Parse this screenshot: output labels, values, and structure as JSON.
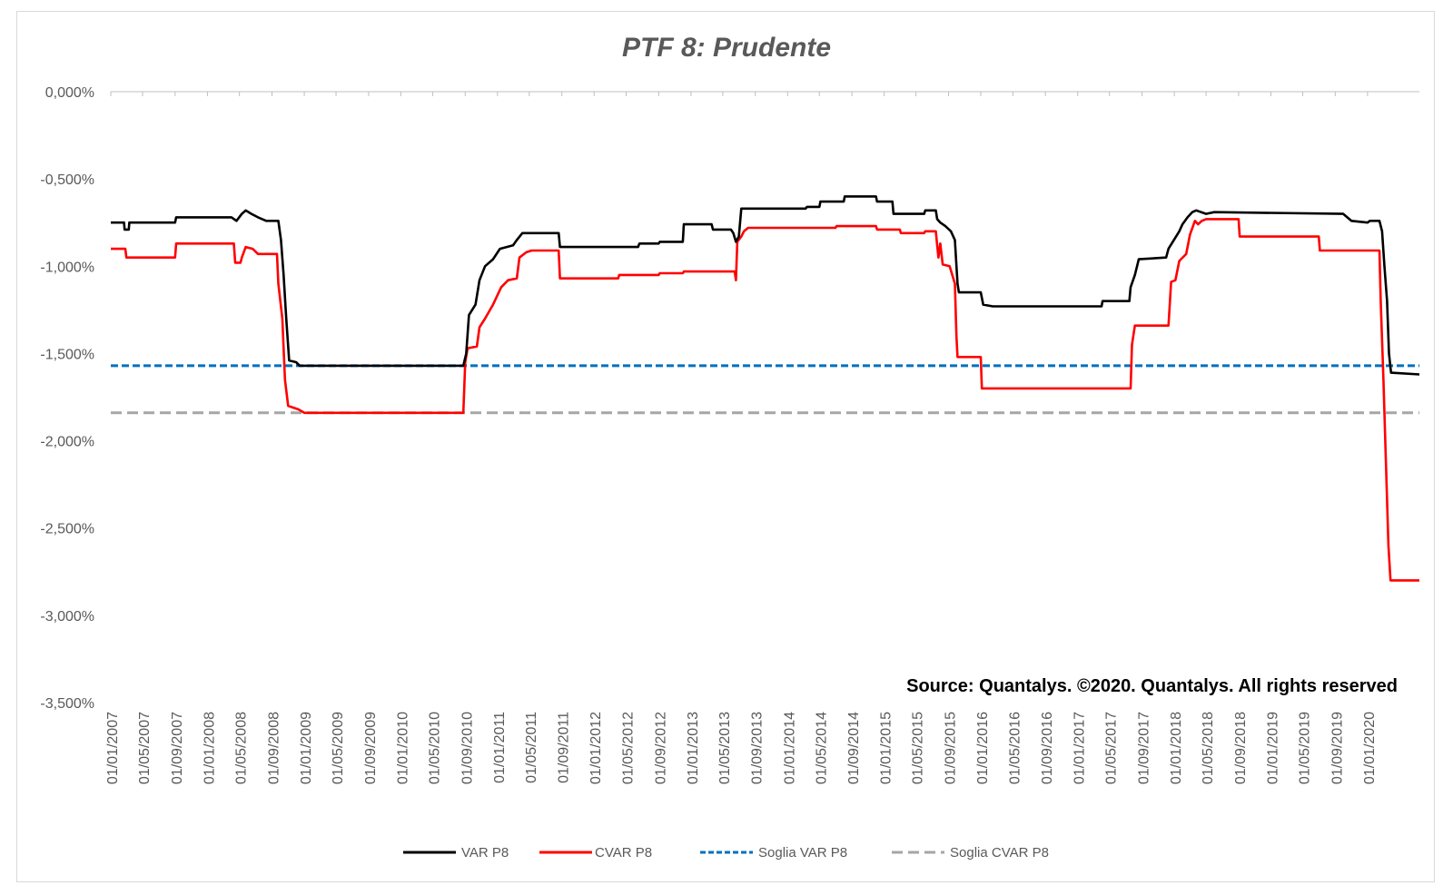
{
  "chart_data": {
    "type": "line",
    "title": "PTF 8: Prudente",
    "source_note": "Source: Quantalys. ©2020. Quantalys. All rights reserved",
    "ylim": [
      -3.5,
      0
    ],
    "y_ticks": [
      0,
      -0.5,
      -1,
      -1.5,
      -2,
      -2.5,
      -3,
      -3.5
    ],
    "y_tick_labels": [
      "0,000%",
      "-0,500%",
      "-1,000%",
      "-1,500%",
      "-2,000%",
      "-2,500%",
      "-3,000%",
      "-3,500%"
    ],
    "y_unit": "%",
    "x_range": [
      "2007-01-01",
      "2020-07-15"
    ],
    "x_tick_labels": [
      "01/01/2007",
      "01/05/2007",
      "01/09/2007",
      "01/01/2008",
      "01/05/2008",
      "01/09/2008",
      "01/01/2009",
      "01/05/2009",
      "01/09/2009",
      "01/01/2010",
      "01/05/2010",
      "01/09/2010",
      "01/01/2011",
      "01/05/2011",
      "01/09/2011",
      "01/01/2012",
      "01/05/2012",
      "01/09/2012",
      "01/01/2013",
      "01/05/2013",
      "01/09/2013",
      "01/01/2014",
      "01/05/2014",
      "01/09/2014",
      "01/01/2015",
      "01/05/2015",
      "01/09/2015",
      "01/01/2016",
      "01/05/2016",
      "01/09/2016",
      "01/01/2017",
      "01/05/2017",
      "01/09/2017",
      "01/01/2018",
      "01/05/2018",
      "01/09/2018",
      "01/01/2019",
      "01/05/2019",
      "01/09/2019",
      "01/01/2020"
    ],
    "x_tick_dates": [
      "2007-01-01",
      "2007-05-01",
      "2007-09-01",
      "2008-01-01",
      "2008-05-01",
      "2008-09-01",
      "2009-01-01",
      "2009-05-01",
      "2009-09-01",
      "2010-01-01",
      "2010-05-01",
      "2010-09-01",
      "2011-01-01",
      "2011-05-01",
      "2011-09-01",
      "2012-01-01",
      "2012-05-01",
      "2012-09-01",
      "2013-01-01",
      "2013-05-01",
      "2013-09-01",
      "2014-01-01",
      "2014-05-01",
      "2014-09-01",
      "2015-01-01",
      "2015-05-01",
      "2015-09-01",
      "2016-01-01",
      "2016-05-01",
      "2016-09-01",
      "2017-01-01",
      "2017-05-01",
      "2017-09-01",
      "2018-01-01",
      "2018-05-01",
      "2018-09-01",
      "2019-01-01",
      "2019-05-01",
      "2019-09-01",
      "2020-01-01"
    ],
    "legend_position": "bottom",
    "grid": false,
    "series": [
      {
        "name": "VAR  P8",
        "color": "#000000",
        "style": "solid",
        "points": [
          [
            "2007-01-01",
            -0.75
          ],
          [
            "2007-02-20",
            -0.75
          ],
          [
            "2007-02-22",
            -0.79
          ],
          [
            "2007-03-10",
            -0.79
          ],
          [
            "2007-03-12",
            -0.75
          ],
          [
            "2007-09-01",
            -0.75
          ],
          [
            "2007-09-05",
            -0.72
          ],
          [
            "2008-04-01",
            -0.72
          ],
          [
            "2008-04-20",
            -0.74
          ],
          [
            "2008-05-10",
            -0.7
          ],
          [
            "2008-05-25",
            -0.68
          ],
          [
            "2008-06-15",
            -0.7
          ],
          [
            "2008-07-10",
            -0.72
          ],
          [
            "2008-08-10",
            -0.74
          ],
          [
            "2008-09-25",
            -0.74
          ],
          [
            "2008-10-05",
            -0.85
          ],
          [
            "2008-10-15",
            -1.05
          ],
          [
            "2008-10-25",
            -1.3
          ],
          [
            "2008-11-05",
            -1.54
          ],
          [
            "2008-12-01",
            -1.55
          ],
          [
            "2008-12-15",
            -1.57
          ],
          [
            "2010-08-25",
            -1.57
          ],
          [
            "2010-09-05",
            -1.5
          ],
          [
            "2010-09-15",
            -1.28
          ],
          [
            "2010-10-10",
            -1.22
          ],
          [
            "2010-10-25",
            -1.08
          ],
          [
            "2010-11-15",
            -1.0
          ],
          [
            "2010-12-15",
            -0.96
          ],
          [
            "2011-01-10",
            -0.9
          ],
          [
            "2011-03-01",
            -0.88
          ],
          [
            "2011-03-15",
            -0.85
          ],
          [
            "2011-04-05",
            -0.81
          ],
          [
            "2011-08-20",
            -0.81
          ],
          [
            "2011-08-25",
            -0.89
          ],
          [
            "2012-06-15",
            -0.89
          ],
          [
            "2012-06-20",
            -0.87
          ],
          [
            "2012-09-01",
            -0.87
          ],
          [
            "2012-09-05",
            -0.86
          ],
          [
            "2012-12-01",
            -0.86
          ],
          [
            "2012-12-05",
            -0.76
          ],
          [
            "2013-03-20",
            -0.76
          ],
          [
            "2013-03-25",
            -0.79
          ],
          [
            "2013-06-01",
            -0.79
          ],
          [
            "2013-06-10",
            -0.81
          ],
          [
            "2013-06-20",
            -0.86
          ],
          [
            "2013-07-01",
            -0.83
          ],
          [
            "2013-07-10",
            -0.67
          ],
          [
            "2014-03-10",
            -0.67
          ],
          [
            "2014-03-15",
            -0.66
          ],
          [
            "2014-05-01",
            -0.66
          ],
          [
            "2014-05-05",
            -0.63
          ],
          [
            "2014-08-01",
            -0.63
          ],
          [
            "2014-08-05",
            -0.6
          ],
          [
            "2014-12-01",
            -0.6
          ],
          [
            "2014-12-05",
            -0.63
          ],
          [
            "2015-02-01",
            -0.63
          ],
          [
            "2015-02-05",
            -0.7
          ],
          [
            "2015-06-01",
            -0.7
          ],
          [
            "2015-06-05",
            -0.68
          ],
          [
            "2015-07-15",
            -0.68
          ],
          [
            "2015-07-20",
            -0.73
          ],
          [
            "2015-08-01",
            -0.75
          ],
          [
            "2015-08-20",
            -0.77
          ],
          [
            "2015-09-10",
            -0.8
          ],
          [
            "2015-09-25",
            -0.85
          ],
          [
            "2015-10-05",
            -1.1
          ],
          [
            "2015-10-10",
            -1.15
          ],
          [
            "2016-01-01",
            -1.15
          ],
          [
            "2016-01-10",
            -1.22
          ],
          [
            "2016-02-15",
            -1.23
          ],
          [
            "2017-04-01",
            -1.23
          ],
          [
            "2017-04-05",
            -1.2
          ],
          [
            "2017-07-15",
            -1.2
          ],
          [
            "2017-07-20",
            -1.12
          ],
          [
            "2017-08-05",
            -1.05
          ],
          [
            "2017-08-20",
            -0.96
          ],
          [
            "2017-12-01",
            -0.95
          ],
          [
            "2017-12-10",
            -0.9
          ],
          [
            "2018-01-20",
            -0.8
          ],
          [
            "2018-02-01",
            -0.76
          ],
          [
            "2018-02-20",
            -0.72
          ],
          [
            "2018-03-10",
            -0.69
          ],
          [
            "2018-03-25",
            -0.68
          ],
          [
            "2018-05-01",
            -0.7
          ],
          [
            "2018-06-01",
            -0.69
          ],
          [
            "2019-10-01",
            -0.7
          ],
          [
            "2019-11-01",
            -0.74
          ],
          [
            "2020-01-01",
            -0.75
          ],
          [
            "2020-01-10",
            -0.74
          ],
          [
            "2020-02-15",
            -0.74
          ],
          [
            "2020-02-25",
            -0.8
          ],
          [
            "2020-03-05",
            -1.0
          ],
          [
            "2020-03-15",
            -1.2
          ],
          [
            "2020-03-22",
            -1.5
          ],
          [
            "2020-03-30",
            -1.61
          ],
          [
            "2020-07-15",
            -1.62
          ]
        ]
      },
      {
        "name": "CVAR P8",
        "color": "#ff0000",
        "style": "solid",
        "points": [
          [
            "2007-01-01",
            -0.9
          ],
          [
            "2007-02-25",
            -0.9
          ],
          [
            "2007-03-01",
            -0.95
          ],
          [
            "2007-09-01",
            -0.95
          ],
          [
            "2007-09-05",
            -0.87
          ],
          [
            "2008-04-10",
            -0.87
          ],
          [
            "2008-04-15",
            -0.98
          ],
          [
            "2008-05-05",
            -0.98
          ],
          [
            "2008-05-10",
            -0.95
          ],
          [
            "2008-05-25",
            -0.89
          ],
          [
            "2008-06-20",
            -0.9
          ],
          [
            "2008-07-10",
            -0.93
          ],
          [
            "2008-09-20",
            -0.93
          ],
          [
            "2008-09-25",
            -1.1
          ],
          [
            "2008-10-10",
            -1.3
          ],
          [
            "2008-10-20",
            -1.65
          ],
          [
            "2008-11-01",
            -1.8
          ],
          [
            "2008-12-10",
            -1.82
          ],
          [
            "2009-01-01",
            -1.84
          ],
          [
            "2010-08-25",
            -1.84
          ],
          [
            "2010-09-01",
            -1.55
          ],
          [
            "2010-09-10",
            -1.47
          ],
          [
            "2010-10-15",
            -1.46
          ],
          [
            "2010-10-25",
            -1.35
          ],
          [
            "2010-11-15",
            -1.3
          ],
          [
            "2010-12-15",
            -1.22
          ],
          [
            "2011-01-15",
            -1.12
          ],
          [
            "2011-02-10",
            -1.08
          ],
          [
            "2011-03-15",
            -1.07
          ],
          [
            "2011-03-25",
            -0.95
          ],
          [
            "2011-04-20",
            -0.92
          ],
          [
            "2011-05-10",
            -0.91
          ],
          [
            "2011-08-20",
            -0.91
          ],
          [
            "2011-08-25",
            -1.07
          ],
          [
            "2012-04-01",
            -1.07
          ],
          [
            "2012-04-05",
            -1.05
          ],
          [
            "2012-09-01",
            -1.05
          ],
          [
            "2012-09-05",
            -1.04
          ],
          [
            "2012-12-01",
            -1.04
          ],
          [
            "2012-12-05",
            -1.03
          ],
          [
            "2013-06-15",
            -1.03
          ],
          [
            "2013-06-20",
            -1.08
          ],
          [
            "2013-06-25",
            -0.86
          ],
          [
            "2013-07-10",
            -0.83
          ],
          [
            "2013-07-20",
            -0.8
          ],
          [
            "2013-08-05",
            -0.78
          ],
          [
            "2014-07-01",
            -0.78
          ],
          [
            "2014-07-05",
            -0.77
          ],
          [
            "2014-12-01",
            -0.77
          ],
          [
            "2014-12-05",
            -0.79
          ],
          [
            "2015-03-01",
            -0.79
          ],
          [
            "2015-03-05",
            -0.81
          ],
          [
            "2015-06-01",
            -0.81
          ],
          [
            "2015-06-05",
            -0.8
          ],
          [
            "2015-07-15",
            -0.8
          ],
          [
            "2015-07-20",
            -0.88
          ],
          [
            "2015-07-25",
            -0.95
          ],
          [
            "2015-08-01",
            -0.87
          ],
          [
            "2015-08-10",
            -0.99
          ],
          [
            "2015-09-05",
            -1.0
          ],
          [
            "2015-09-15",
            -1.05
          ],
          [
            "2015-09-25",
            -1.1
          ],
          [
            "2015-10-01",
            -1.4
          ],
          [
            "2015-10-05",
            -1.52
          ],
          [
            "2016-01-01",
            -1.52
          ],
          [
            "2016-01-05",
            -1.7
          ],
          [
            "2017-07-20",
            -1.7
          ],
          [
            "2017-07-25",
            -1.45
          ],
          [
            "2017-08-05",
            -1.34
          ],
          [
            "2017-12-10",
            -1.34
          ],
          [
            "2017-12-20",
            -1.09
          ],
          [
            "2018-01-05",
            -1.08
          ],
          [
            "2018-01-20",
            -0.97
          ],
          [
            "2018-02-15",
            -0.93
          ],
          [
            "2018-03-01",
            -0.82
          ],
          [
            "2018-03-20",
            -0.74
          ],
          [
            "2018-04-01",
            -0.76
          ],
          [
            "2018-04-15",
            -0.74
          ],
          [
            "2018-05-01",
            -0.73
          ],
          [
            "2018-09-01",
            -0.73
          ],
          [
            "2018-09-05",
            -0.83
          ],
          [
            "2019-07-01",
            -0.83
          ],
          [
            "2019-07-05",
            -0.91
          ],
          [
            "2020-02-15",
            -0.91
          ],
          [
            "2020-02-20",
            -1.2
          ],
          [
            "2020-03-01",
            -1.65
          ],
          [
            "2020-03-10",
            -2.1
          ],
          [
            "2020-03-20",
            -2.6
          ],
          [
            "2020-03-28",
            -2.8
          ],
          [
            "2020-07-15",
            -2.8
          ]
        ]
      },
      {
        "name": "Soglia VAR  P8",
        "color": "#0070c0",
        "style": "dashed",
        "points": [
          [
            "2007-01-01",
            -1.57
          ],
          [
            "2020-07-15",
            -1.57
          ]
        ]
      },
      {
        "name": "Soglia CVAR  P8",
        "color": "#a6a6a6",
        "style": "dashed",
        "points": [
          [
            "2007-01-01",
            -1.84
          ],
          [
            "2020-07-15",
            -1.84
          ]
        ]
      }
    ]
  }
}
